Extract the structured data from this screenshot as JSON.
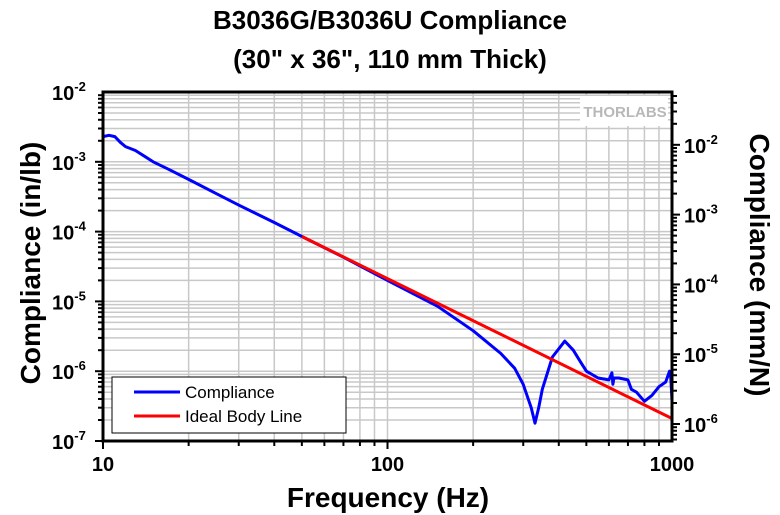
{
  "chart_data": {
    "type": "line",
    "title": "B3036G/B3036U Compliance",
    "subtitle": "(30\" x 36\", 110 mm Thick)",
    "xlabel": "Frequency (Hz)",
    "ylabel": "Compliance (in/lb)",
    "ylabel_right": "Compliance (mm/N)",
    "xscale": "log",
    "yscale": "log",
    "xlim": [
      10,
      1000
    ],
    "ylim": [
      1e-07,
      0.01
    ],
    "ylim_right_note": "right axis = left axis x 5.71 (mm/N)",
    "x_ticks": [
      "10",
      "100",
      "1000"
    ],
    "y_ticks": [
      {
        "base": "10",
        "exp": "-2"
      },
      {
        "base": "10",
        "exp": "-3"
      },
      {
        "base": "10",
        "exp": "-4"
      },
      {
        "base": "10",
        "exp": "-5"
      },
      {
        "base": "10",
        "exp": "-6"
      },
      {
        "base": "10",
        "exp": "-7"
      }
    ],
    "y_ticks_right": [
      {
        "base": "10",
        "exp": "-2"
      },
      {
        "base": "10",
        "exp": "-3"
      },
      {
        "base": "10",
        "exp": "-4"
      },
      {
        "base": "10",
        "exp": "-5"
      },
      {
        "base": "10",
        "exp": "-6"
      }
    ],
    "grid": true,
    "legend_position": "bottom-left",
    "watermark": "THORLABS",
    "series": [
      {
        "name": "Compliance",
        "color": "#0000ff",
        "x": [
          10,
          10.5,
          11,
          11.5,
          12,
          13,
          14,
          15,
          17,
          20,
          25,
          30,
          40,
          50,
          70,
          100,
          150,
          200,
          250,
          280,
          300,
          320,
          330,
          340,
          350,
          380,
          420,
          450,
          480,
          500,
          550,
          600,
          615,
          620,
          625,
          650,
          700,
          720,
          750,
          800,
          850,
          900,
          950,
          980,
          990,
          1000
        ],
        "y": [
          0.0023,
          0.0024,
          0.0023,
          0.0019,
          0.00165,
          0.00145,
          0.0012,
          0.001,
          0.00078,
          0.00056,
          0.00035,
          0.00024,
          0.000135,
          8.5e-05,
          4.3e-05,
          2e-05,
          8.5e-06,
          3.8e-06,
          1.8e-06,
          1.1e-06,
          6.5e-07,
          3e-07,
          1.8e-07,
          3e-07,
          5.5e-07,
          1.6e-06,
          2.7e-06,
          2e-06,
          1.3e-06,
          1e-06,
          8e-07,
          7.5e-07,
          9.5e-07,
          6.5e-07,
          8e-07,
          8e-07,
          7.5e-07,
          5.5e-07,
          5e-07,
          3.7e-07,
          4.5e-07,
          6e-07,
          7e-07,
          1e-06,
          8e-07,
          3.8e-07
        ]
      },
      {
        "name": "Ideal Body Line",
        "color": "#ff0000",
        "x": [
          50,
          1000
        ],
        "y": [
          8.5e-05,
          2.1e-07
        ]
      }
    ]
  }
}
